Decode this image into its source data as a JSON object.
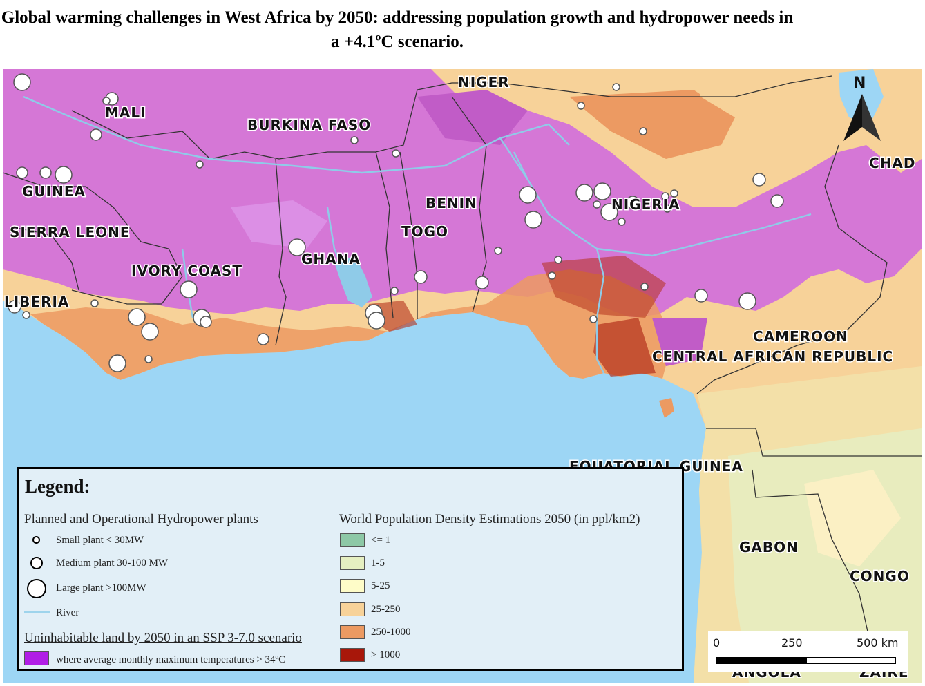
{
  "title": "Global warming challenges in West Africa by 2050: addressing population growth and hydropower needs in a +4.1ºC scenario.",
  "colors": {
    "sea": "#9dd6f5",
    "uninhabitable": "#d577d6",
    "uninhabitable_bright": "#c15cc7",
    "density_le1": "#8dc8a6",
    "density_1_5": "#e5efc1",
    "density_5_25": "#fbf0c4",
    "density_25_250": "#f7d299",
    "density_250_1000": "#ec9a62",
    "density_gt1000": "#b4311c",
    "river": "#8fcbe8",
    "border": "#333333"
  },
  "map": {
    "countries": [
      "NIGER",
      "MALI",
      "BURKINA FASO",
      "GUINEA",
      "SIERRA LEONE",
      "IVORY COAST",
      "GHANA",
      "TOGO",
      "BENIN",
      "NIGERIA",
      "LIBERIA",
      "CHAD",
      "CAMEROON",
      "CENTRAL AFRICAN REPUBLIC",
      "EQUATORIAL GUINEA",
      "GABON",
      "CONGO",
      "ANGOLA",
      "ZAIRE"
    ],
    "north_label": "N"
  },
  "legend": {
    "heading": "Legend:",
    "hydro": {
      "title": "Planned and Operational Hydropower plants",
      "small": "Small plant < 30MW",
      "medium": "Medium plant 30-100 MW",
      "large": "Large plant >100MW",
      "river": "River"
    },
    "uninhabitable": {
      "title": "Uninhabitable land by 2050 in an SSP 3-7.0 scenario",
      "item": "where average monthly maximum temperatures > 34ºC"
    },
    "density": {
      "title": "World Population Density Estimations 2050 (in ppl/km2)",
      "classes": [
        "<= 1",
        "1-5",
        "5-25",
        "25-250",
        "250-1000",
        "> 1000"
      ]
    }
  },
  "scale": {
    "labels": [
      "0",
      "250",
      "500 km"
    ]
  }
}
